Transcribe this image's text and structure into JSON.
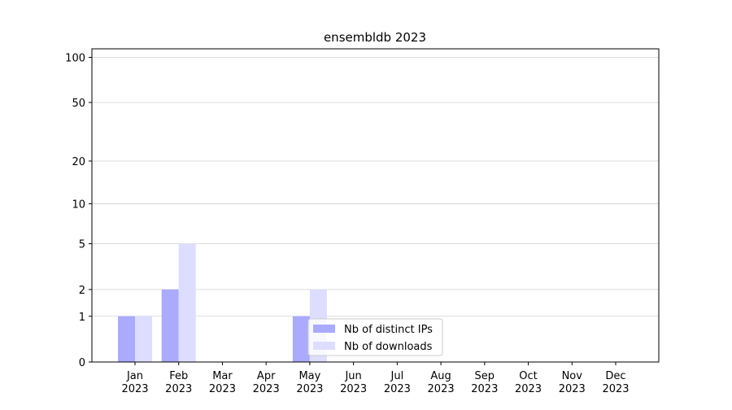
{
  "chart_data": {
    "type": "bar",
    "title": "ensembldb 2023",
    "categories": [
      "Jan 2023",
      "Feb 2023",
      "Mar 2023",
      "Apr 2023",
      "May 2023",
      "Jun 2023",
      "Jul 2023",
      "Aug 2023",
      "Sep 2023",
      "Oct 2023",
      "Nov 2023",
      "Dec 2023"
    ],
    "series": [
      {
        "name": "Nb of distinct IPs",
        "color": "#aaaaff",
        "values": [
          1,
          2,
          0,
          0,
          1,
          0,
          0,
          0,
          0,
          0,
          0,
          0
        ]
      },
      {
        "name": "Nb of downloads",
        "color": "#ddddff",
        "values": [
          1,
          5,
          0,
          0,
          2,
          0,
          0,
          0,
          0,
          0,
          0,
          0
        ]
      }
    ],
    "yscale": "log1p",
    "ylim": [
      0,
      114
    ],
    "yticks": [
      0,
      1,
      2,
      5,
      10,
      20,
      50,
      100
    ],
    "grid": true,
    "legend": "lower center"
  }
}
